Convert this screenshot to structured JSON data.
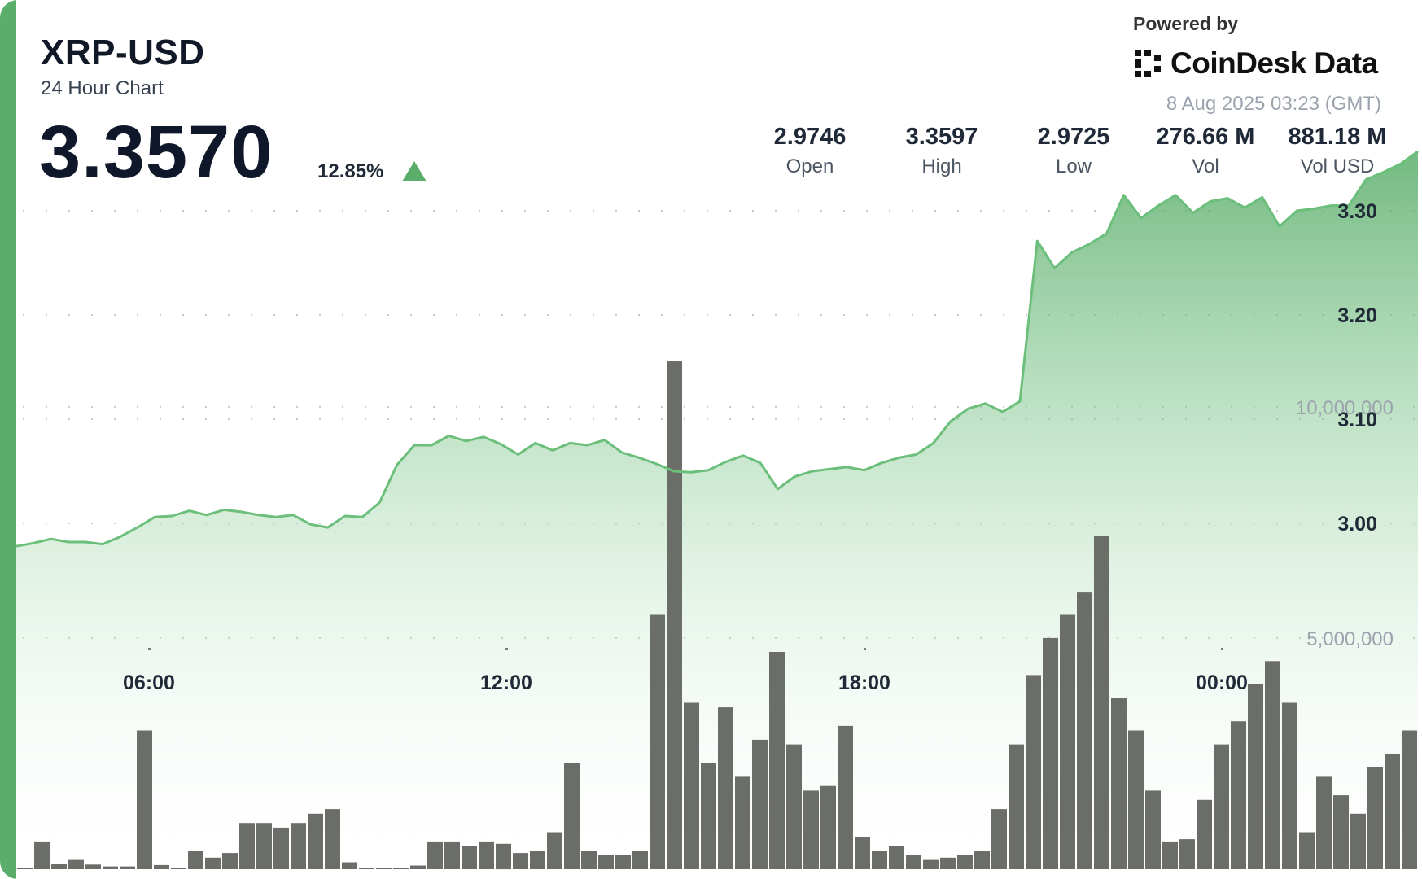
{
  "header": {
    "symbol": "XRP-USD",
    "subtitle": "24 Hour Chart",
    "price": "3.3570",
    "change": "12.85%",
    "change_direction": "up",
    "powered_by": "Powered by",
    "brand": "CoinDesk Data",
    "timestamp": "8 Aug 2025 03:23 (GMT)"
  },
  "stats": [
    {
      "value": "2.9746",
      "label": "Open"
    },
    {
      "value": "3.3597",
      "label": "High"
    },
    {
      "value": "2.9725",
      "label": "Low"
    },
    {
      "value": "276.66 M",
      "label": "Vol"
    },
    {
      "value": "881.18 M",
      "label": "Vol USD"
    }
  ],
  "colors": {
    "accent": "#5aad6a",
    "line": "#6bbf7a",
    "volume_bar": "#6b6e68",
    "grid": "#c8c8c8"
  },
  "chart_data": [
    {
      "type": "area",
      "x_tick_labels": [
        "06:00",
        "12:00",
        "18:00",
        "00:00"
      ],
      "y_tick_labels": [
        "3.00",
        "3.10",
        "3.20",
        "3.30"
      ],
      "ylim": [
        2.89,
        3.36
      ],
      "grid": "dotted horizontal",
      "series": [
        {
          "values": [
            2.978,
            2.981,
            2.985,
            2.982,
            2.982,
            2.98,
            2.987,
            2.996,
            3.006,
            3.007,
            3.012,
            3.008,
            3.013,
            3.011,
            3.008,
            3.006,
            3.008,
            2.999,
            2.996,
            3.007,
            3.006,
            3.02,
            3.056,
            3.075,
            3.075,
            3.084,
            3.079,
            3.083,
            3.076,
            3.066,
            3.077,
            3.07,
            3.077,
            3.075,
            3.08,
            3.068,
            3.063,
            3.057,
            3.05,
            3.049,
            3.051,
            3.059,
            3.065,
            3.058,
            3.033,
            3.045,
            3.05,
            3.052,
            3.054,
            3.051,
            3.058,
            3.063,
            3.066,
            3.077,
            3.098,
            3.11,
            3.115,
            3.107,
            3.117,
            3.271,
            3.245,
            3.26,
            3.268,
            3.278,
            3.315,
            3.293,
            3.305,
            3.315,
            3.298,
            3.309,
            3.312,
            3.303,
            3.313,
            3.285,
            3.3,
            3.302,
            3.305,
            3.305,
            3.33,
            3.337,
            3.345,
            3.357
          ]
        }
      ]
    },
    {
      "type": "bar",
      "name": "volume",
      "y_tick_labels": [
        "5,000,000",
        "10,000,000"
      ],
      "ylim": [
        0,
        13500000
      ],
      "values": [
        30000,
        600000,
        120000,
        200000,
        100000,
        60000,
        60000,
        3000000,
        90000,
        20000,
        400000,
        250000,
        350000,
        1000000,
        1000000,
        900000,
        1000000,
        1200000,
        1300000,
        150000,
        30000,
        20000,
        20000,
        80000,
        600000,
        600000,
        500000,
        600000,
        550000,
        350000,
        400000,
        800000,
        2300000,
        400000,
        300000,
        300000,
        400000,
        5500000,
        11000000,
        3600000,
        2300000,
        3500000,
        2000000,
        2800000,
        4700000,
        2700000,
        1700000,
        1800000,
        3100000,
        700000,
        400000,
        500000,
        300000,
        200000,
        250000,
        300000,
        400000,
        1300000,
        2700000,
        4200000,
        5000000,
        5500000,
        6000000,
        7200000,
        3700000,
        3000000,
        1700000,
        600000,
        650000,
        1500000,
        2700000,
        3200000,
        4000000,
        4500000,
        3600000,
        800000,
        2000000,
        1600000,
        1200000,
        2200000,
        2500000,
        3000000
      ]
    }
  ]
}
